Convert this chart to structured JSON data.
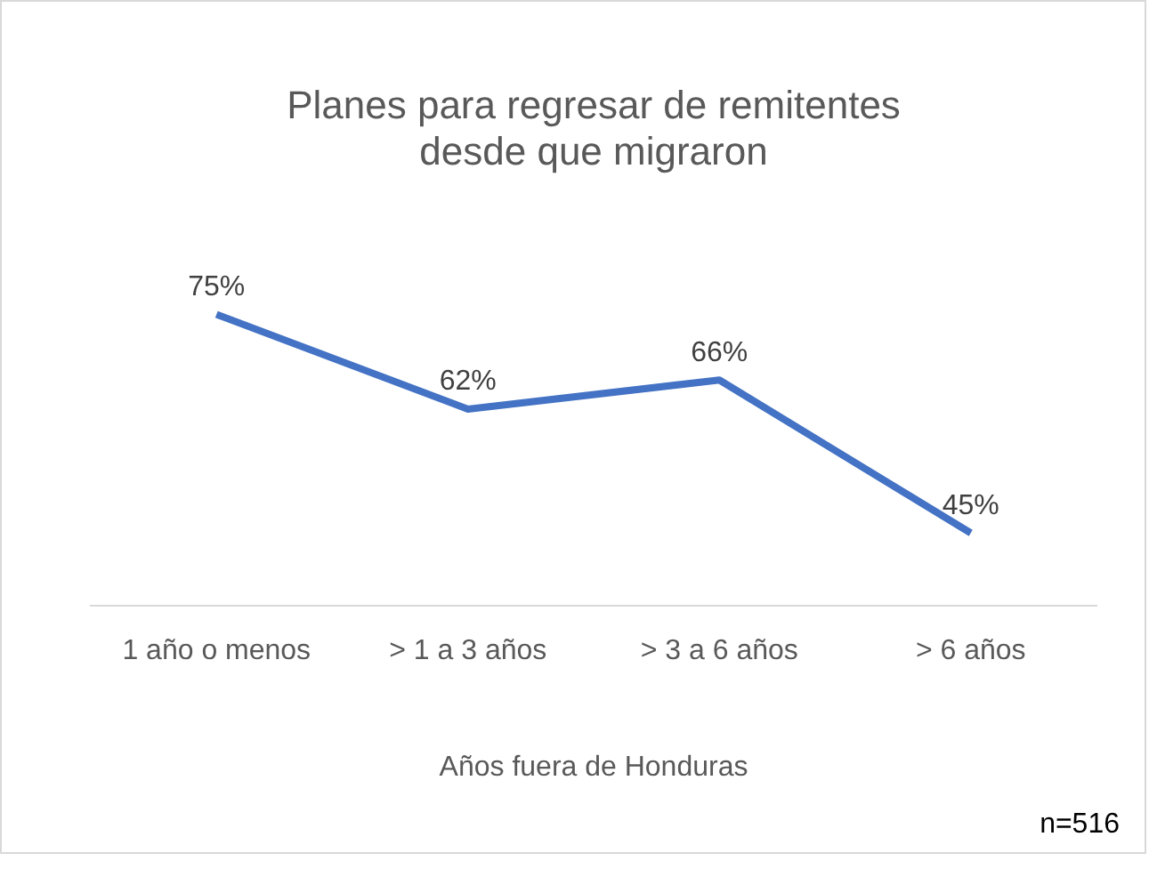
{
  "chart_data": {
    "type": "line",
    "title": "Planes para regresar de remitentes desde que migraron",
    "xlabel": "Años fuera de Honduras",
    "categories": [
      "1 año o menos",
      "> 1 a 3 años",
      "> 3 a 6 años",
      "> 6 años"
    ],
    "series": [
      {
        "color": "#4472c4",
        "values": [
          75,
          62,
          66,
          45
        ],
        "value_labels": [
          "75%",
          "62%",
          "66%",
          "45%"
        ]
      }
    ],
    "tick_labels": "x",
    "grid": false,
    "legend": false,
    "marker": "none",
    "annotations": [
      "n=516"
    ]
  }
}
